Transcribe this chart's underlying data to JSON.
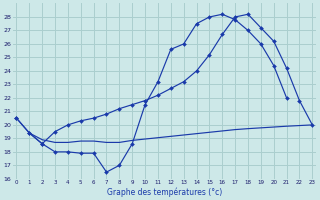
{
  "xlabel": "Graphe des températures (°c)",
  "xlim": [
    -0.3,
    23.3
  ],
  "ylim": [
    16,
    29
  ],
  "yticks": [
    16,
    17,
    18,
    19,
    20,
    21,
    22,
    23,
    24,
    25,
    26,
    27,
    28
  ],
  "xticks": [
    0,
    1,
    2,
    3,
    4,
    5,
    6,
    7,
    8,
    9,
    10,
    11,
    12,
    13,
    14,
    15,
    16,
    17,
    18,
    19,
    20,
    21,
    22,
    23
  ],
  "bg_color": "#cde8e8",
  "grid_color": "#aacece",
  "line_color": "#1a3aaa",
  "line1_x": [
    0,
    1,
    2,
    3,
    4,
    5,
    6,
    7,
    8,
    9,
    10,
    11,
    12,
    13,
    14,
    15,
    16,
    17,
    18,
    19,
    20,
    21
  ],
  "line1_y": [
    20.5,
    19.4,
    18.6,
    18.0,
    18.0,
    17.9,
    17.9,
    16.5,
    17.0,
    18.6,
    21.5,
    23.2,
    25.6,
    26.0,
    27.5,
    28.0,
    28.2,
    27.8,
    27.0,
    26.0,
    24.4,
    22.0
  ],
  "line2_x": [
    0,
    1,
    2,
    3,
    4,
    5,
    6,
    7,
    8,
    9,
    10,
    11,
    12,
    13,
    14,
    15,
    16,
    17,
    18,
    19,
    20,
    21,
    22,
    23
  ],
  "line2_y": [
    20.5,
    19.4,
    18.6,
    19.5,
    20.0,
    20.3,
    20.5,
    20.8,
    21.2,
    21.5,
    21.8,
    22.2,
    22.7,
    23.2,
    24.0,
    25.2,
    26.7,
    28.0,
    28.2,
    27.2,
    26.2,
    24.2,
    21.8,
    20.0
  ],
  "line3_x": [
    1,
    2,
    3,
    4,
    5,
    6,
    7,
    8,
    9,
    10,
    11,
    12,
    13,
    14,
    15,
    16,
    17,
    18,
    19,
    20,
    21,
    22,
    23
  ],
  "line3_y": [
    19.4,
    18.9,
    18.7,
    18.7,
    18.8,
    18.8,
    18.7,
    18.7,
    18.85,
    18.95,
    19.05,
    19.15,
    19.25,
    19.35,
    19.45,
    19.55,
    19.65,
    19.72,
    19.78,
    19.84,
    19.9,
    19.95,
    20.0
  ]
}
